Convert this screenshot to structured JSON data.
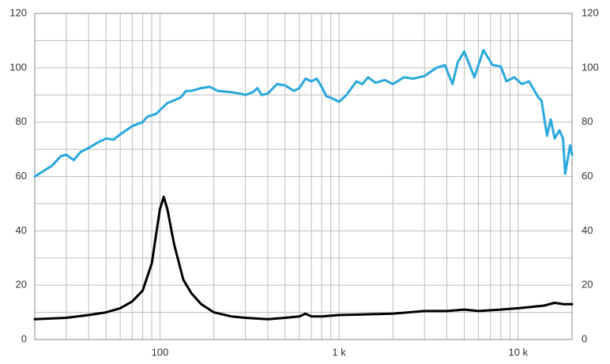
{
  "chart_data": {
    "type": "line",
    "xscale": "log",
    "xlim": [
      20,
      20000
    ],
    "xticks": [
      {
        "value": 100,
        "label": "100"
      },
      {
        "value": 1000,
        "label": "1 k"
      },
      {
        "value": 10000,
        "label": "10 k"
      }
    ],
    "x_minor_ticks": [
      30,
      40,
      50,
      60,
      70,
      80,
      90,
      200,
      300,
      400,
      500,
      600,
      700,
      800,
      900,
      2000,
      3000,
      4000,
      5000,
      6000,
      7000,
      8000,
      9000
    ],
    "ylim": [
      0,
      120
    ],
    "yticks": [
      0,
      20,
      40,
      60,
      80,
      100,
      120
    ],
    "y_minor_ticks": [
      10,
      30,
      50,
      70,
      90,
      110
    ],
    "y2lim": [
      0,
      120
    ],
    "y2ticks": [
      0,
      20,
      40,
      60,
      80,
      100,
      120
    ],
    "grid": true,
    "series": [
      {
        "color": "#29a8dc",
        "x": [
          20,
          25,
          28,
          30,
          33,
          36,
          40,
          45,
          50,
          55,
          60,
          70,
          80,
          85,
          95,
          110,
          130,
          140,
          150,
          170,
          190,
          210,
          250,
          280,
          300,
          330,
          350,
          370,
          400,
          450,
          500,
          560,
          600,
          650,
          700,
          750,
          800,
          850,
          900,
          1000,
          1100,
          1250,
          1350,
          1450,
          1600,
          1800,
          2000,
          2300,
          2600,
          3000,
          3500,
          3900,
          4300,
          4600,
          5000,
          5700,
          6400,
          7200,
          8000,
          8600,
          9500,
          10500,
          11500,
          13000,
          13500,
          14500,
          15200,
          16000,
          17000,
          17800,
          18300,
          19500,
          20000
        ],
        "values": [
          60,
          64,
          67.5,
          68,
          66,
          69,
          70.5,
          72.5,
          74,
          73.5,
          75.5,
          78.5,
          80,
          82,
          83,
          87,
          89,
          91.5,
          91.5,
          92.5,
          93,
          91.5,
          91,
          90.5,
          90,
          91,
          92.5,
          90,
          90.5,
          94,
          93.5,
          91.5,
          92.5,
          96,
          95,
          96,
          93,
          89.5,
          89,
          87.5,
          90,
          95,
          94,
          96.5,
          94.5,
          95.5,
          94,
          96.5,
          96,
          97,
          100,
          101,
          94,
          102,
          106,
          96.5,
          106.5,
          101,
          100.5,
          95,
          96.5,
          94,
          95,
          89,
          88,
          75,
          81,
          74,
          77,
          74,
          61,
          71.5,
          68
        ]
      },
      {
        "color": "#000000",
        "x": [
          20,
          30,
          40,
          50,
          60,
          70,
          80,
          90,
          100,
          105,
          110,
          120,
          135,
          150,
          170,
          200,
          250,
          300,
          400,
          500,
          600,
          650,
          700,
          800,
          1000,
          2000,
          3000,
          4000,
          5000,
          6000,
          8000,
          10000,
          14000,
          16000,
          18000,
          20000
        ],
        "values": [
          7.5,
          8,
          9,
          10,
          11.5,
          14,
          18,
          28,
          48,
          52.5,
          48,
          35,
          22,
          17,
          13,
          10,
          8.5,
          8,
          7.5,
          8,
          8.5,
          9.5,
          8.5,
          8.5,
          9,
          9.5,
          10.5,
          10.5,
          11,
          10.5,
          11,
          11.5,
          12.5,
          13.5,
          13,
          13
        ]
      }
    ]
  }
}
